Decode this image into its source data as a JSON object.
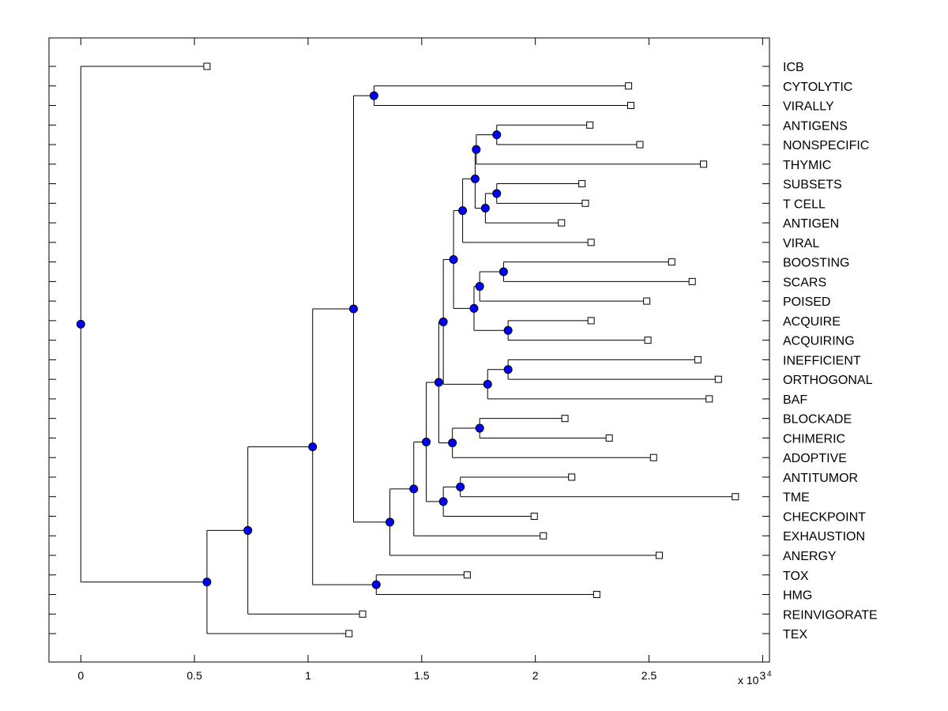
{
  "chart_data": {
    "type": "dendrogram",
    "title": "",
    "xlabel": "",
    "ylabel": "",
    "x_multiplier_label": "x 10",
    "x_multiplier_exp": "4",
    "xlim": [
      -0.14,
      3.03
    ],
    "xticks": [
      0,
      0.5,
      1,
      1.5,
      2,
      2.5,
      3
    ],
    "xtick_labels": [
      "0",
      "0.5",
      "1",
      "1.5",
      "2",
      "2.5",
      "3"
    ],
    "grid": false,
    "node_color": "#0000ff",
    "leaves": [
      {
        "label": "ICB",
        "x": 0.555
      },
      {
        "label": "CYTOLYTIC",
        "x": 2.41
      },
      {
        "label": "VIRALLY",
        "x": 2.42
      },
      {
        "label": "ANTIGENS",
        "x": 2.24
      },
      {
        "label": "NONSPECIFIC",
        "x": 2.46
      },
      {
        "label": "THYMIC",
        "x": 2.74
      },
      {
        "label": "SUBSETS",
        "x": 2.205
      },
      {
        "label": "T CELL",
        "x": 2.22
      },
      {
        "label": "ANTIGEN",
        "x": 2.115
      },
      {
        "label": "VIRAL",
        "x": 2.245
      },
      {
        "label": "BOOSTING",
        "x": 2.6
      },
      {
        "label": "SCARS",
        "x": 2.69
      },
      {
        "label": "POISED",
        "x": 2.49
      },
      {
        "label": "ACQUIRE",
        "x": 2.245
      },
      {
        "label": "ACQUIRING",
        "x": 2.495
      },
      {
        "label": "INEFFICIENT",
        "x": 2.715
      },
      {
        "label": "ORTHOGONAL",
        "x": 2.805
      },
      {
        "label": "BAF",
        "x": 2.765
      },
      {
        "label": "BLOCKADE",
        "x": 2.13
      },
      {
        "label": "CHIMERIC",
        "x": 2.325
      },
      {
        "label": "ADOPTIVE",
        "x": 2.52
      },
      {
        "label": "ANTITUMOR",
        "x": 2.16
      },
      {
        "label": "TME",
        "x": 2.88
      },
      {
        "label": "CHECKPOINT",
        "x": 1.995
      },
      {
        "label": "EXHAUSTION",
        "x": 2.035
      },
      {
        "label": "ANERGY",
        "x": 2.545
      },
      {
        "label": "TOX",
        "x": 1.7
      },
      {
        "label": "HMG",
        "x": 2.27
      },
      {
        "label": "REINVIGORATE",
        "x": 1.24
      },
      {
        "label": "TEX",
        "x": 1.18
      }
    ],
    "merges": [
      {
        "id": "N1",
        "x": 1.83,
        "children": [
          "L3",
          "L4"
        ]
      },
      {
        "id": "N2",
        "x": 1.74,
        "children": [
          "N1",
          "L5"
        ]
      },
      {
        "id": "N3",
        "x": 1.83,
        "children": [
          "L6",
          "L7"
        ]
      },
      {
        "id": "N4",
        "x": 1.78,
        "children": [
          "N3",
          "L8"
        ]
      },
      {
        "id": "N5",
        "x": 1.735,
        "children": [
          "N2",
          "N4"
        ]
      },
      {
        "id": "N6",
        "x": 1.68,
        "children": [
          "N5",
          "L9"
        ]
      },
      {
        "id": "N7",
        "x": 1.86,
        "children": [
          "L10",
          "L11"
        ]
      },
      {
        "id": "N8",
        "x": 1.755,
        "children": [
          "N7",
          "L12"
        ]
      },
      {
        "id": "N9",
        "x": 1.88,
        "children": [
          "L13",
          "L14"
        ]
      },
      {
        "id": "N10",
        "x": 1.73,
        "children": [
          "N8",
          "N9"
        ]
      },
      {
        "id": "N11",
        "x": 1.64,
        "children": [
          "N6",
          "N10"
        ]
      },
      {
        "id": "N12",
        "x": 1.88,
        "children": [
          "L15",
          "L16"
        ]
      },
      {
        "id": "N13",
        "x": 1.79,
        "children": [
          "N12",
          "L17"
        ]
      },
      {
        "id": "N14",
        "x": 1.595,
        "children": [
          "N11",
          "N13"
        ]
      },
      {
        "id": "N15",
        "x": 1.755,
        "children": [
          "L18",
          "L19"
        ]
      },
      {
        "id": "N16",
        "x": 1.635,
        "children": [
          "N15",
          "L20"
        ]
      },
      {
        "id": "N17",
        "x": 1.575,
        "children": [
          "N14",
          "N16"
        ]
      },
      {
        "id": "N18",
        "x": 1.67,
        "children": [
          "L21",
          "L22"
        ]
      },
      {
        "id": "N19",
        "x": 1.595,
        "children": [
          "N18",
          "L23"
        ]
      },
      {
        "id": "N20",
        "x": 1.52,
        "children": [
          "N17",
          "N19"
        ]
      },
      {
        "id": "N21",
        "x": 1.465,
        "children": [
          "N20",
          "L24"
        ]
      },
      {
        "id": "N22",
        "x": 1.36,
        "children": [
          "N21",
          "L25"
        ]
      },
      {
        "id": "N23",
        "x": 1.29,
        "children": [
          "L1",
          "L2"
        ]
      },
      {
        "id": "N24",
        "x": 1.2,
        "children": [
          "N23",
          "N22"
        ]
      },
      {
        "id": "N25",
        "x": 1.3,
        "children": [
          "L26",
          "L27"
        ]
      },
      {
        "id": "N26",
        "x": 1.02,
        "children": [
          "N24",
          "N25"
        ]
      },
      {
        "id": "N27",
        "x": 0.735,
        "children": [
          "N26",
          "L28"
        ]
      },
      {
        "id": "N28",
        "x": 0.555,
        "children": [
          "N27",
          "L29"
        ]
      },
      {
        "id": "N29",
        "x": 0.0,
        "children": [
          "L0",
          "N28"
        ]
      }
    ]
  }
}
